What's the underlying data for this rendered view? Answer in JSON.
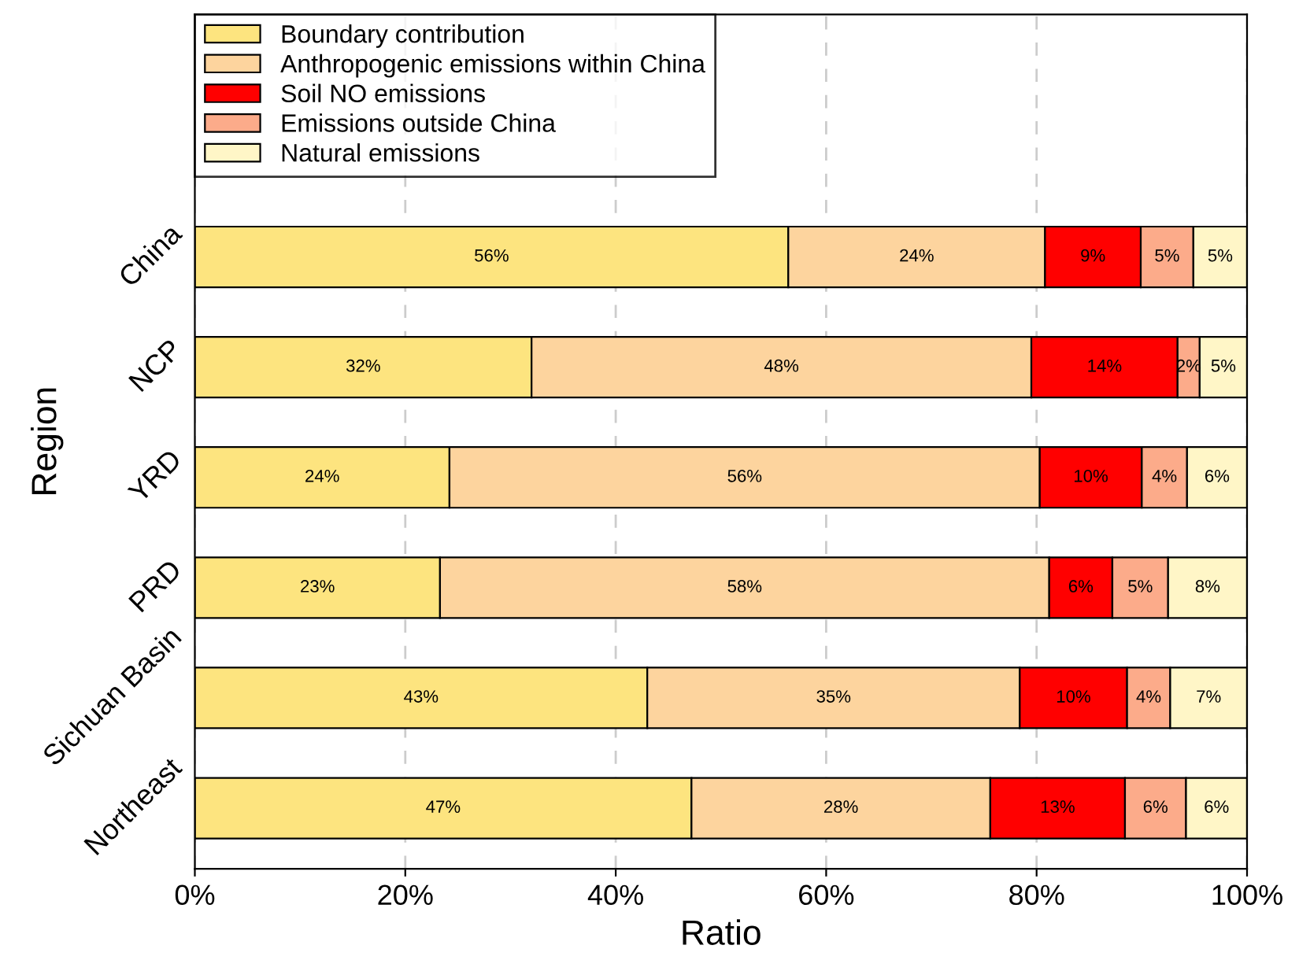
{
  "chart_data": {
    "type": "bar",
    "orientation": "horizontal",
    "stacked": true,
    "xlabel": "Ratio",
    "ylabel": "Region",
    "categories": [
      "China",
      "NCP",
      "YRD",
      "PRD",
      "Sichuan Basin",
      "Northeast"
    ],
    "series": [
      {
        "name": "Boundary contribution",
        "color": "#fde47f",
        "values": [
          56.4,
          32.0,
          24.2,
          23.3,
          43.0,
          47.2
        ],
        "value_labels": [
          "56%",
          "32%",
          "24%",
          "23%",
          "43%",
          "47%"
        ]
      },
      {
        "name": "Anthropogenic emissions within China",
        "color": "#fdd49e",
        "values": [
          24.4,
          47.5,
          56.1,
          57.9,
          35.4,
          28.4
        ],
        "value_labels": [
          "24%",
          "48%",
          "56%",
          "58%",
          "35%",
          "28%"
        ]
      },
      {
        "name": "Soil NO emissions",
        "color": "#ff0000",
        "values": [
          9.1,
          13.9,
          9.7,
          6.0,
          10.2,
          12.8
        ],
        "value_labels": [
          "9%",
          "14%",
          "10%",
          "6%",
          "10%",
          "13%"
        ]
      },
      {
        "name": "Emissions outside China",
        "color": "#fcab8a",
        "values": [
          5.0,
          2.1,
          4.3,
          5.3,
          4.1,
          5.8
        ],
        "value_labels": [
          "5%",
          "2%",
          "4%",
          "5%",
          "4%",
          "6%"
        ]
      },
      {
        "name": "Natural emissions",
        "color": "#fff6c7",
        "values": [
          5.1,
          4.5,
          5.7,
          7.5,
          7.3,
          5.8
        ],
        "value_labels": [
          "5%",
          "5%",
          "6%",
          "8%",
          "7%",
          "6%"
        ]
      }
    ],
    "xlim": [
      0,
      100
    ],
    "xticks": [
      {
        "value": 0,
        "label": "0%"
      },
      {
        "value": 20,
        "label": "20%"
      },
      {
        "value": 40,
        "label": "40%"
      },
      {
        "value": 60,
        "label": "60%"
      },
      {
        "value": 80,
        "label": "80%"
      },
      {
        "value": 100,
        "label": "100%"
      }
    ],
    "grid": "x",
    "legend": "top left"
  }
}
